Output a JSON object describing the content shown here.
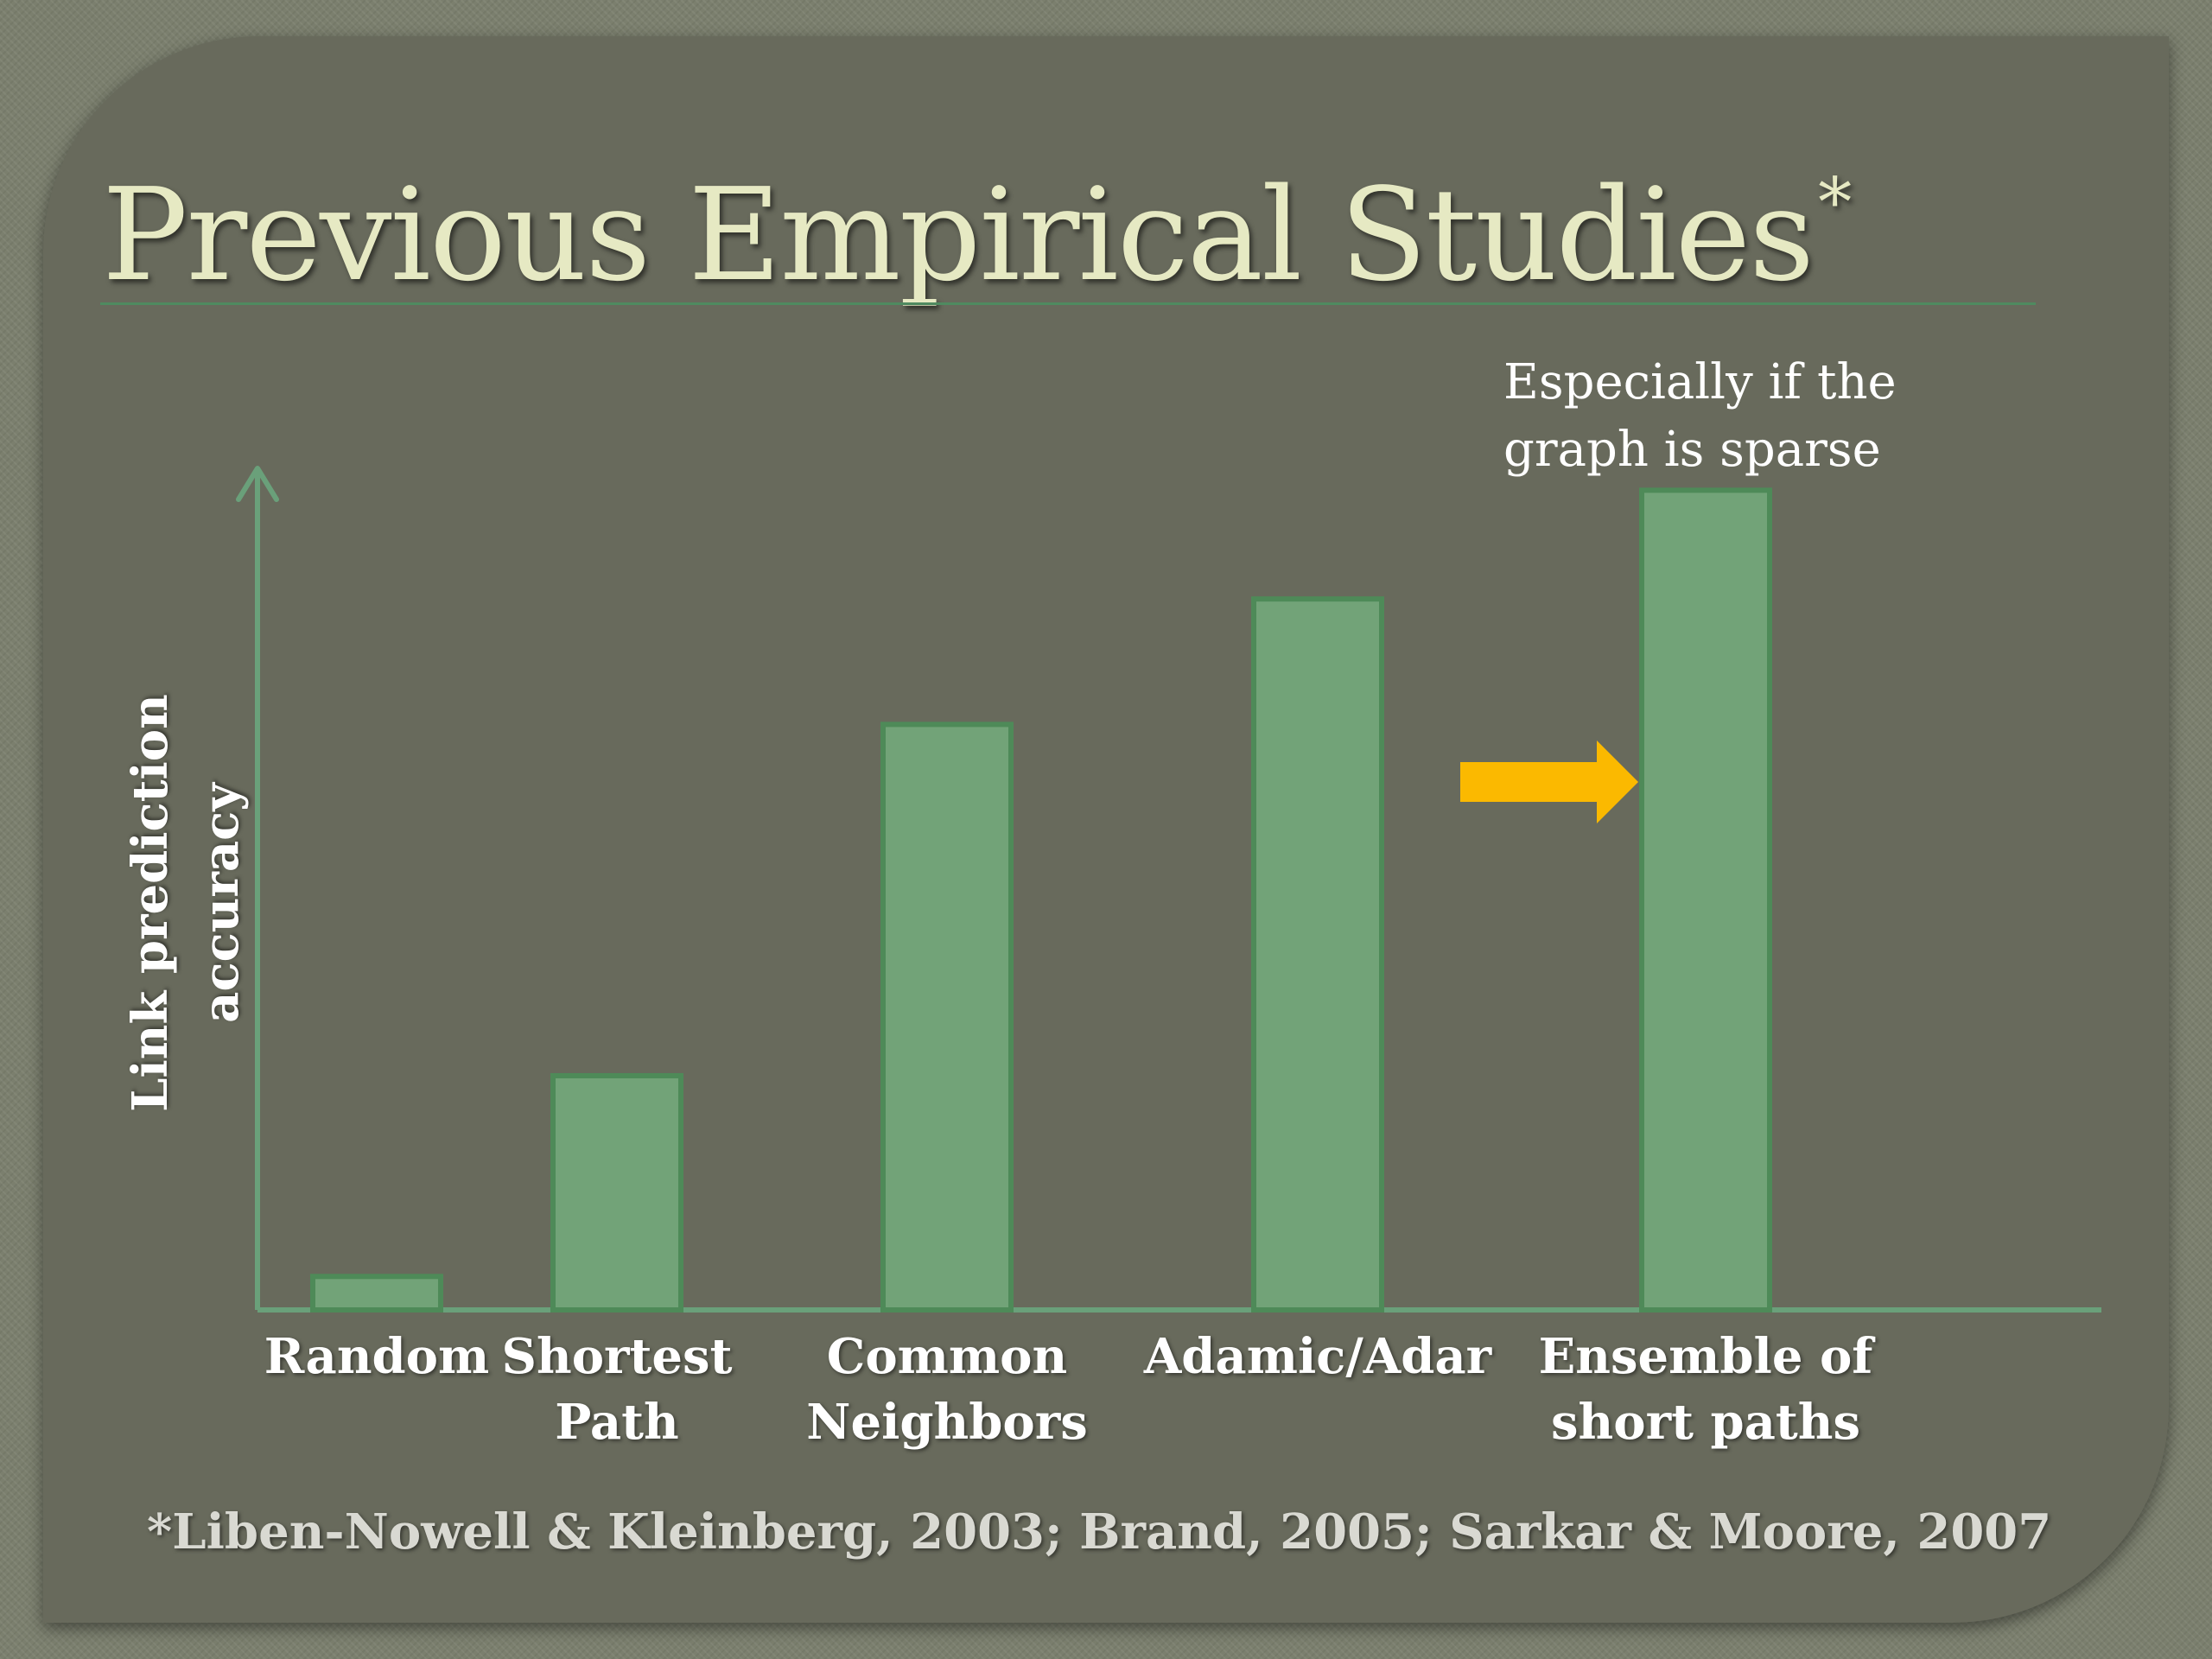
{
  "slide": {
    "title": "Previous Empirical Studies",
    "title_mark": "*",
    "footnote": "*Liben-Nowell & Kleinberg, 2003; Brand, 2005;  Sarkar & Moore, 2007"
  },
  "colors": {
    "bar": "#72a378",
    "bar_border": "#4e8a58",
    "axis": "#6aa07a",
    "highlight_arrow": "#fbb900"
  },
  "chart_data": {
    "type": "bar",
    "categories": [
      [
        "Random"
      ],
      [
        "Shortest",
        "Path"
      ],
      [
        "Common",
        "Neighbors"
      ],
      [
        "Adamic/Adar"
      ],
      [
        "Ensemble of",
        "short paths"
      ]
    ],
    "values": [
      4,
      28,
      70,
      85,
      98
    ],
    "ylim": [
      0,
      100
    ],
    "ylabel_lines": [
      "Link prediction",
      "accuracy"
    ],
    "y_axis_ticks": false,
    "annotation": {
      "lines": [
        "Especially if the",
        "graph is sparse"
      ],
      "target_index": 4,
      "arrow": "yellow-right-arrow"
    }
  }
}
